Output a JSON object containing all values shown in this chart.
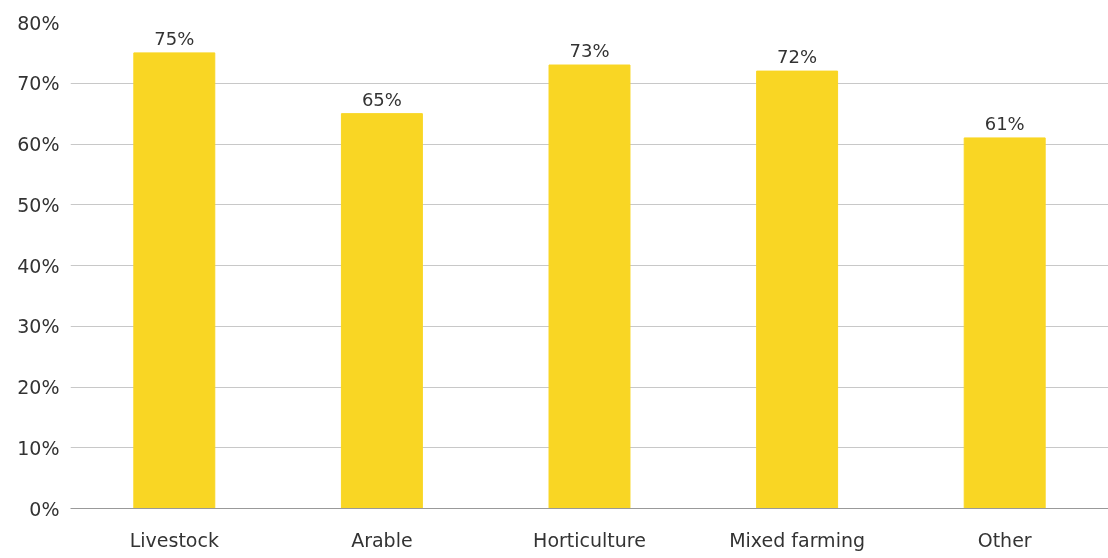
{
  "chart_data": {
    "type": "bar",
    "categories": [
      "Livestock",
      "Arable",
      "Horticulture",
      "Mixed farming",
      "Other"
    ],
    "values": [
      75,
      65,
      73,
      72,
      61
    ],
    "value_labels": [
      "75%",
      "65%",
      "73%",
      "72%",
      "61%"
    ],
    "color": "#f9d624",
    "ylim": [
      0,
      80
    ],
    "yticks": [
      {
        "value": 0,
        "label": "0%"
      },
      {
        "value": 10,
        "label": "10%"
      },
      {
        "value": 20,
        "label": "20%"
      },
      {
        "value": 30,
        "label": "30%"
      },
      {
        "value": 40,
        "label": "40%"
      },
      {
        "value": 50,
        "label": "50%"
      },
      {
        "value": 60,
        "label": "60%"
      },
      {
        "value": 70,
        "label": "70%"
      },
      {
        "value": 80,
        "label": "80%"
      }
    ],
    "grid": "y"
  }
}
